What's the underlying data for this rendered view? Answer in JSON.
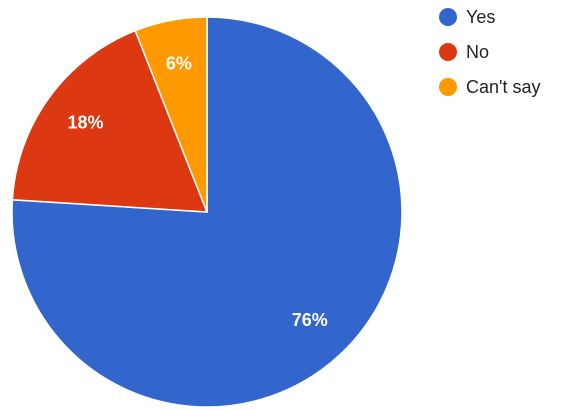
{
  "chart_data": {
    "type": "pie",
    "categories": [
      "Yes",
      "No",
      "Can't say"
    ],
    "values": [
      76,
      18,
      6
    ],
    "value_labels": [
      "76%",
      "18%",
      "6%"
    ],
    "colors": [
      "#3366cc",
      "#dc3912",
      "#ff9900"
    ],
    "legend": "top-right"
  }
}
